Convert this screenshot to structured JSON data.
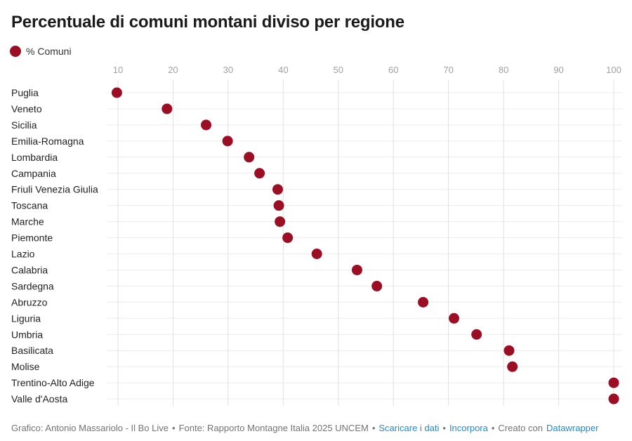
{
  "header": {
    "title": "Percentuale di comuni montani diviso per regione"
  },
  "legend": {
    "label": "% Comuni",
    "color": "#9b0e24"
  },
  "chart_data": {
    "type": "scatter",
    "subtype": "horizontal-dot-plot",
    "title": "Percentuale di comuni montani diviso per regione",
    "series_name": "% Comuni",
    "categories": [
      "Puglia",
      "Veneto",
      "Sicilia",
      "Emilia-Romagna",
      "Lombardia",
      "Campania",
      "Friuli Venezia Giulia",
      "Toscana",
      "Marche",
      "Piemonte",
      "Lazio",
      "Calabria",
      "Sardegna",
      "Abruzzo",
      "Liguria",
      "Umbria",
      "Basilicata",
      "Molise",
      "Trentino-Alto Adige",
      "Valle d'Aosta"
    ],
    "values": [
      9.8,
      18.9,
      26.0,
      29.9,
      33.8,
      35.7,
      39.0,
      39.2,
      39.4,
      40.8,
      46.1,
      53.4,
      57.0,
      65.4,
      71.0,
      75.1,
      81.0,
      81.6,
      100,
      100
    ],
    "x_ticks": [
      10,
      20,
      30,
      40,
      50,
      60,
      70,
      80,
      90,
      100
    ],
    "xlim": [
      10,
      100
    ],
    "xlabel": "",
    "ylabel": "",
    "grid": true,
    "legend_position": "top-left",
    "dot_color": "#9b0e24",
    "colors": {
      "dot": "#9b0e24",
      "vertical_grid": "#e0e0e0",
      "row_grid": "#ececec",
      "tick_label": "#a0a0a0",
      "row_label": "#1f1f1f"
    }
  },
  "footer": {
    "parts": [
      {
        "name": "credit-text",
        "type": "text",
        "text": "Grafico: Antonio Massariolo - Il Bo Live"
      },
      {
        "name": "separator",
        "type": "sep",
        "text": "•"
      },
      {
        "name": "source-text",
        "type": "text",
        "text": "Fonte: Rapporto Montagne Italia 2025 UNCEM"
      },
      {
        "name": "separator",
        "type": "sep",
        "text": "•"
      },
      {
        "name": "download-data-link",
        "type": "link",
        "text": "Scaricare i dati"
      },
      {
        "name": "separator",
        "type": "sep",
        "text": "•"
      },
      {
        "name": "embed-link",
        "type": "link",
        "text": "Incorpora"
      },
      {
        "name": "separator",
        "type": "sep",
        "text": "•"
      },
      {
        "name": "created-with-text",
        "type": "text",
        "text": "Creato con"
      },
      {
        "name": "datawrapper-link",
        "type": "link",
        "text": "Datawrapper"
      }
    ],
    "link_color": "#1e8bd1"
  }
}
